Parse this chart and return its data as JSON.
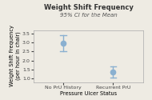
{
  "title": "Weight Shift Frequency",
  "subtitle": "95% CI for the Mean",
  "xlabel": "Pressure Ulcer Status",
  "ylabel": "Weight Shift Frequency\n(per hour in chair)",
  "categories": [
    "No PrU History",
    "Recurrent PrU"
  ],
  "means": [
    2.96,
    1.36
  ],
  "ci_lower": [
    2.53,
    1.03
  ],
  "ci_upper": [
    3.39,
    1.69
  ],
  "ylim": [
    0.8,
    3.7
  ],
  "xlim": [
    -0.6,
    1.6
  ],
  "marker_color": "#8ab0d0",
  "ci_color": "#8ab0d0",
  "background_color": "#eeebe3",
  "title_fontsize": 6.0,
  "subtitle_fontsize": 5.0,
  "label_fontsize": 4.8,
  "tick_fontsize": 4.5,
  "yticks": [
    1.0,
    1.5,
    2.0,
    2.5,
    3.0,
    3.5
  ],
  "ytick_labels": [
    "1.0",
    "1.5",
    "2.0",
    "2.5",
    "3.0",
    "3.5"
  ]
}
